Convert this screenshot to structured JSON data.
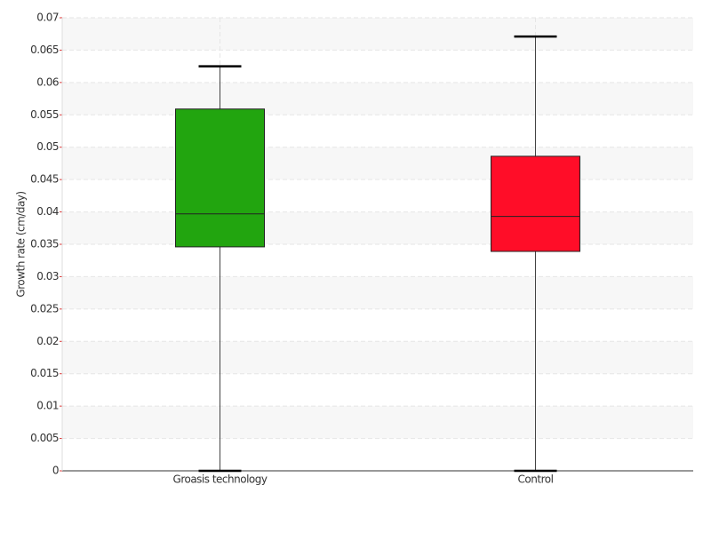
{
  "chart_data": {
    "type": "box",
    "y_label": "Growth rate (cm/day)",
    "categories": [
      "Groasis technology",
      "Control"
    ],
    "boxes": [
      {
        "min": 0,
        "q1": 0.0346,
        "median": 0.0397,
        "q3": 0.0559,
        "max": 0.0625,
        "color": "#22a50f"
      },
      {
        "min": 0,
        "q1": 0.0339,
        "median": 0.0393,
        "q3": 0.0486,
        "max": 0.0671,
        "color": "#ff0d28"
      }
    ],
    "ylim": [
      0,
      0.07
    ],
    "yticks": [
      0,
      0.005,
      0.01,
      0.015,
      0.02,
      0.025,
      0.03,
      0.035,
      0.04,
      0.045,
      0.05,
      0.055,
      0.06,
      0.065,
      0.07
    ],
    "grid": true
  }
}
